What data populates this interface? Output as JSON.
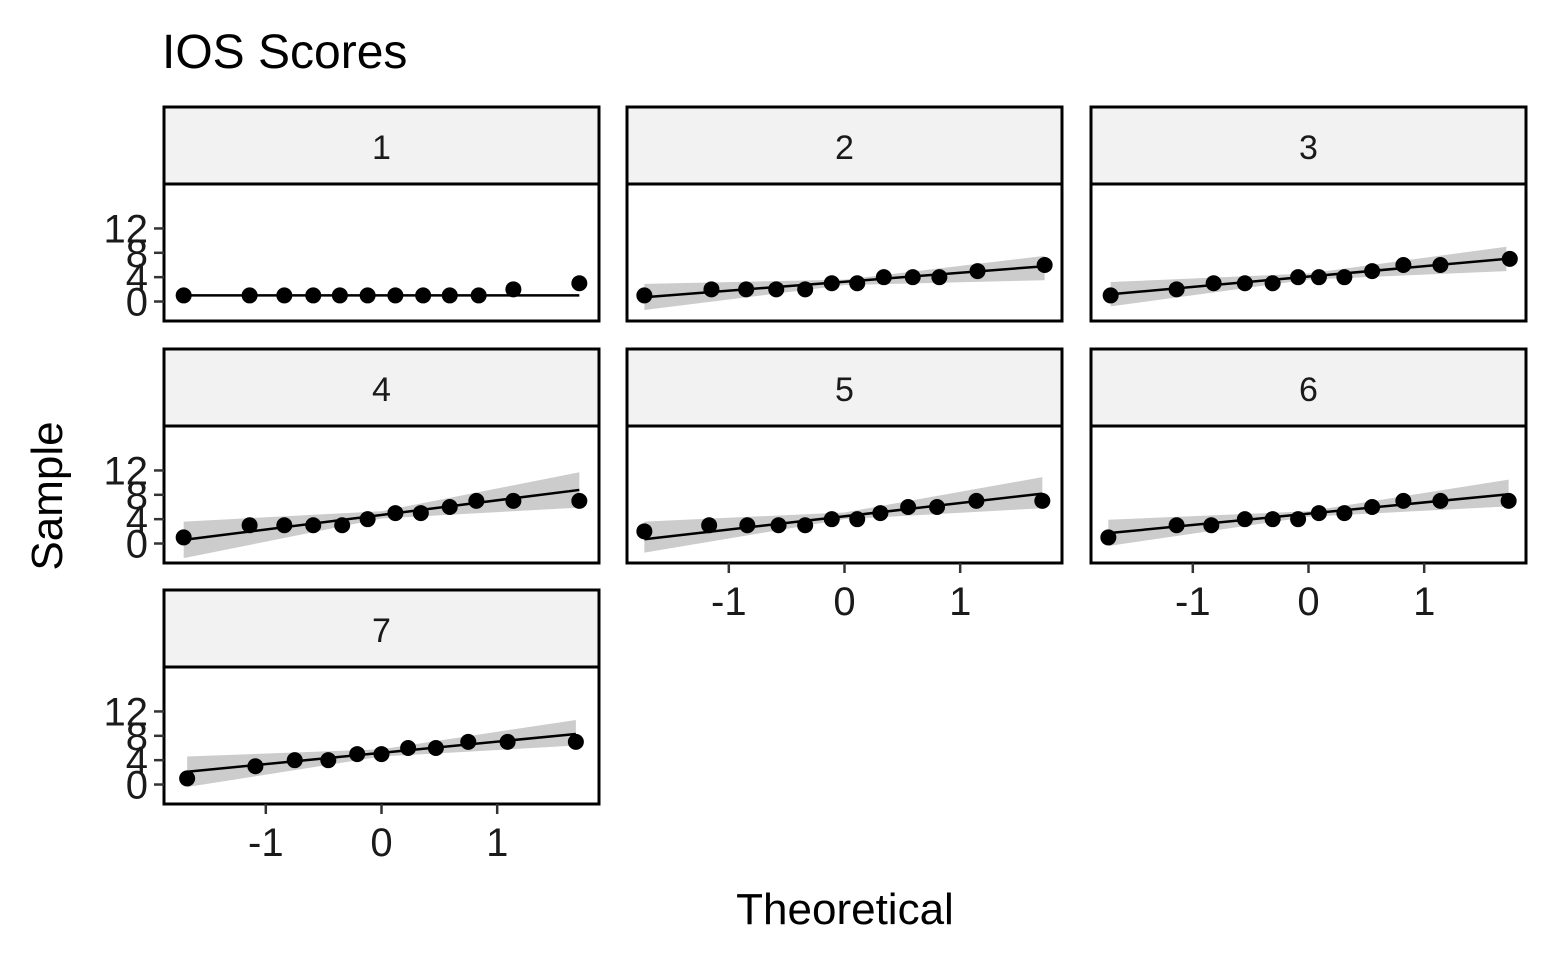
{
  "chart_data": {
    "type": "scatter",
    "title": "IOS Scores",
    "xlabel": "Theoretical",
    "ylabel": "Sample",
    "xlim": [
      -1.88,
      1.88
    ],
    "ylim": [
      -3.2,
      19.3
    ],
    "x_ticks": [
      "-1",
      "0",
      "1"
    ],
    "y_ticks": [
      "0",
      "4",
      "8",
      "12"
    ],
    "grid": false,
    "legend": "none",
    "colors": {
      "points": "#000000",
      "band": "#cccccc",
      "strip": "#f2f2f2",
      "frame": "#000000"
    },
    "panels": [
      {
        "label": "1",
        "x": [
          -1.71,
          -1.14,
          -0.84,
          -0.59,
          -0.36,
          -0.12,
          0.12,
          0.36,
          0.59,
          0.84,
          1.14,
          1.71
        ],
        "y": [
          1,
          1,
          1,
          1,
          1,
          1,
          1,
          1,
          1,
          1,
          2,
          3
        ],
        "line": [
          [
            -1.71,
            1
          ],
          [
            1.71,
            1
          ]
        ],
        "band": []
      },
      {
        "label": "2",
        "x": [
          -1.73,
          -1.15,
          -0.85,
          -0.59,
          -0.34,
          -0.11,
          0.11,
          0.34,
          0.59,
          0.82,
          1.15,
          1.73
        ],
        "y": [
          1,
          2,
          2,
          2,
          2,
          3,
          3,
          4,
          4,
          4,
          5,
          6
        ],
        "line": [
          [
            -1.73,
            0.7
          ],
          [
            1.73,
            5.8
          ]
        ],
        "band": [
          [
            -1.73,
            -1.4,
            2.9
          ],
          [
            0,
            2.7,
            3.6
          ],
          [
            1.73,
            3.5,
            7.5
          ]
        ]
      },
      {
        "label": "3",
        "x": [
          -1.71,
          -1.14,
          -0.82,
          -0.55,
          -0.31,
          -0.09,
          0.09,
          0.31,
          0.55,
          0.82,
          1.14,
          1.74
        ],
        "y": [
          1,
          2,
          3,
          3,
          3,
          4,
          4,
          4,
          5,
          6,
          6,
          7
        ],
        "line": [
          [
            -1.71,
            1.2
          ],
          [
            1.71,
            7.0
          ]
        ],
        "band": [
          [
            -1.71,
            -0.8,
            3.2
          ],
          [
            0,
            3.6,
            4.6
          ],
          [
            1.71,
            5.0,
            9.0
          ]
        ]
      },
      {
        "label": "4",
        "x": [
          -1.71,
          -1.14,
          -0.84,
          -0.59,
          -0.34,
          -0.12,
          0.12,
          0.34,
          0.59,
          0.82,
          1.14,
          1.71
        ],
        "y": [
          1,
          3,
          3,
          3,
          3,
          4,
          5,
          5,
          6,
          7,
          7,
          7
        ],
        "line": [
          [
            -1.71,
            0.6
          ],
          [
            1.71,
            8.8
          ]
        ],
        "band": [
          [
            -1.71,
            -2.4,
            3.6
          ],
          [
            0,
            4.1,
            5.3
          ],
          [
            1.71,
            5.9,
            11.7
          ]
        ]
      },
      {
        "label": "5",
        "x": [
          -1.73,
          -1.17,
          -0.84,
          -0.57,
          -0.34,
          -0.11,
          0.11,
          0.31,
          0.55,
          0.8,
          1.14,
          1.71
        ],
        "y": [
          2,
          3,
          3,
          3,
          3,
          4,
          4,
          5,
          6,
          6,
          7,
          7
        ],
        "line": [
          [
            -1.73,
            0.7
          ],
          [
            1.71,
            8.2
          ]
        ],
        "band": [
          [
            -1.73,
            -1.5,
            3.6
          ],
          [
            0,
            4.0,
            5.1
          ],
          [
            1.71,
            5.8,
            10.9
          ]
        ]
      },
      {
        "label": "6",
        "x": [
          -1.73,
          -1.14,
          -0.84,
          -0.55,
          -0.31,
          -0.09,
          0.09,
          0.31,
          0.55,
          0.82,
          1.14,
          1.73
        ],
        "y": [
          1,
          3,
          3,
          4,
          4,
          4,
          5,
          5,
          6,
          7,
          7,
          7
        ],
        "line": [
          [
            -1.73,
            1.7
          ],
          [
            1.73,
            8.1
          ]
        ],
        "band": [
          [
            -1.73,
            -0.4,
            3.9
          ],
          [
            0,
            4.4,
            5.3
          ],
          [
            1.73,
            6.1,
            10.5
          ]
        ]
      },
      {
        "label": "7",
        "x": [
          -1.68,
          -1.09,
          -0.75,
          -0.46,
          -0.21,
          0.0,
          0.23,
          0.47,
          0.75,
          1.09,
          1.68
        ],
        "y": [
          1,
          3,
          4,
          4,
          5,
          5,
          6,
          6,
          7,
          7,
          7
        ],
        "line": [
          [
            -1.68,
            2.1
          ],
          [
            1.68,
            8.3
          ]
        ],
        "band": [
          [
            -1.68,
            -0.4,
            4.6
          ],
          [
            0,
            4.6,
            5.8
          ],
          [
            1.68,
            6.4,
            10.6
          ]
        ]
      }
    ]
  }
}
